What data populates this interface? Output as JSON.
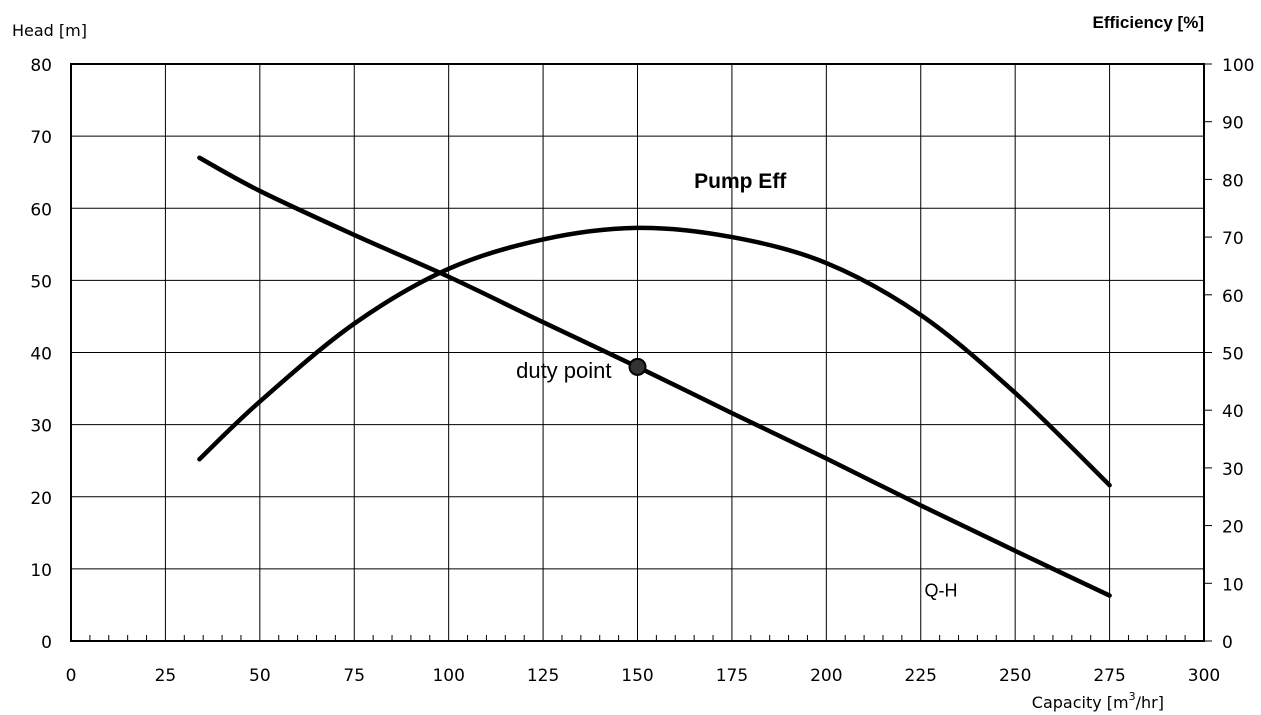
{
  "chart_data": {
    "type": "line",
    "xlabel": "Capacity [m",
    "xlabel_sup": "3",
    "xlabel_tail": "/hr]",
    "ylabel_left": "Head  [m]",
    "ylabel_right": "Efficiency [%]",
    "xlim": [
      0,
      300
    ],
    "ylim_left": [
      0,
      80
    ],
    "ylim_right": [
      0,
      100
    ],
    "x_ticks": [
      0,
      25,
      50,
      75,
      100,
      125,
      150,
      175,
      200,
      225,
      250,
      275,
      300
    ],
    "y_left_ticks": [
      0,
      10,
      20,
      30,
      40,
      50,
      60,
      70,
      80
    ],
    "y_right_ticks": [
      0,
      10,
      20,
      30,
      40,
      50,
      60,
      70,
      80,
      90,
      100
    ],
    "grid": true,
    "series": [
      {
        "name": "Q-H",
        "axis": "left",
        "x": [
          34,
          50,
          75,
          100,
          125,
          150,
          175,
          200,
          225,
          250,
          275
        ],
        "y": [
          67,
          62.4,
          56.3,
          50.5,
          44.2,
          38,
          31.6,
          25.3,
          18.8,
          12.5,
          6.3
        ]
      },
      {
        "name": "Pump Eff",
        "axis": "right",
        "x": [
          34,
          50,
          75,
          100,
          125,
          150,
          175,
          200,
          225,
          250,
          275
        ],
        "y": [
          31.5,
          41.5,
          55,
          64.5,
          69.6,
          71.6,
          70,
          65.5,
          56.5,
          43,
          27
        ]
      }
    ],
    "annotations": [
      {
        "text": "Pump Eff",
        "x": 165,
        "y_right": 78.5
      },
      {
        "text": "duty point",
        "x": 150,
        "y": 38
      },
      {
        "text": "Q-H",
        "x": 226,
        "y": 7
      }
    ],
    "duty_point": {
      "x": 150,
      "y": 38
    }
  }
}
